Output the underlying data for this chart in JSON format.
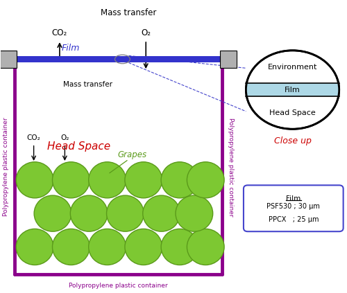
{
  "bg_color": "#ffffff",
  "container_color": "#8B008B",
  "film_bar_color": "#3333cc",
  "wall_gray": "#b0b0b0",
  "grape_color": "#7dc832",
  "grape_edge_color": "#5a9a1a",
  "head_space_label": "Head Space",
  "head_space_color": "#cc0000",
  "grapes_label": "Grapes",
  "grapes_label_color": "#5a9a1a",
  "co2_label": "CO₂",
  "o2_label": "O₂",
  "film_label": "Film",
  "film_label_color": "#3333cc",
  "mass_transfer_top": "Mass transfer",
  "mass_transfer_inner": "Mass transfer",
  "container_label": "Polypropylene plastic container",
  "closeup_label": "Close up",
  "closeup_label_color": "#cc0000",
  "closeup_env_label": "Environment",
  "closeup_film_label": "Film",
  "closeup_hs_label": "Head Space",
  "closeup_film_color": "#add8e6",
  "film_box_title": "Film",
  "film_box_line1": "PSF530 ; 30 μm",
  "film_box_line2": "PPCX   ; 25 μm",
  "dashed_color": "#4444cc"
}
